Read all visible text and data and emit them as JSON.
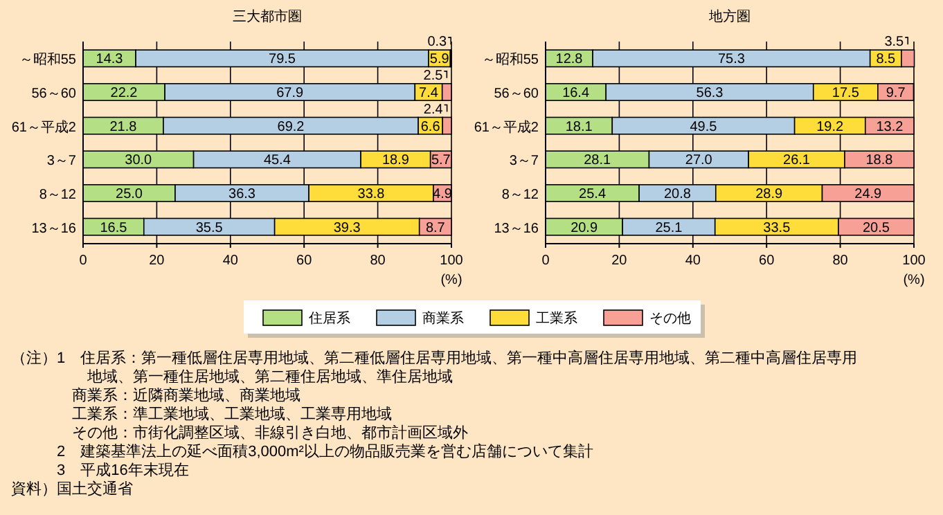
{
  "chart_data": [
    {
      "type": "bar",
      "orientation": "horizontal",
      "stacked": true,
      "title": "三大都市圏",
      "xlabel": "(%)",
      "categories": [
        "～昭和55",
        "56～60",
        "61～平成2",
        "3～7",
        "8～12",
        "13～16"
      ],
      "xlim": [
        0,
        100
      ],
      "xticks": [
        0,
        20,
        40,
        60,
        80,
        100
      ],
      "grid": "x",
      "legend": "bottom",
      "series": [
        {
          "name": "住居系",
          "color": "#b5df85",
          "values": [
            14.3,
            22.2,
            21.8,
            30.0,
            25.0,
            16.5
          ],
          "value_labels": [
            "14.3",
            "22.2",
            "21.8",
            "30.0",
            "25.0",
            "16.5"
          ]
        },
        {
          "name": "商業系",
          "color": "#b4cfe4",
          "values": [
            79.5,
            67.9,
            69.2,
            45.4,
            36.3,
            35.5
          ],
          "value_labels": [
            "79.5",
            "67.9",
            "69.2",
            "45.4",
            "36.3",
            "35.5"
          ]
        },
        {
          "name": "工業系",
          "color": "#fedc3a",
          "values": [
            5.9,
            7.4,
            6.6,
            18.9,
            33.8,
            39.3
          ],
          "value_labels": [
            "5.9",
            "7.4",
            "6.6",
            "18.9",
            "33.8",
            "39.3"
          ]
        },
        {
          "name": "その他",
          "color": "#f7a196",
          "values": [
            0.3,
            2.5,
            2.4,
            5.7,
            4.9,
            8.7
          ],
          "value_labels": [
            "0.3",
            "2.5",
            "2.4",
            "5.7",
            "4.9",
            "8.7"
          ]
        }
      ],
      "annotations": [
        "（注）1　住居系：第一種低層住居専用地域、第二種低層住居専用地域、第一種中高層住居専用地域、第二種中高層住居専用",
        "　　　　　地域、第一種住居地域、第二種住居地域、準住居地域",
        "　　　　商業系：近隣商業地域、商業地域",
        "　　　　工業系：準工業地域、工業地域、工業専用地域",
        "　　　　その他：市街化調整区域、非線引き白地、都市計画区域外",
        "　　　2　建築基準法上の延べ面積3,000m²以上の物品販売業を営む店舗について集計",
        "　　　3　平成16年末現在",
        "資料）国土交通省"
      ]
    },
    {
      "type": "bar",
      "orientation": "horizontal",
      "stacked": true,
      "title": "地方圏",
      "xlabel": "(%)",
      "categories": [
        "～昭和55",
        "56～60",
        "61～平成2",
        "3～7",
        "8～12",
        "13～16"
      ],
      "xlim": [
        0,
        100
      ],
      "xticks": [
        0,
        20,
        40,
        60,
        80,
        100
      ],
      "grid": "x",
      "series": [
        {
          "color": "#b5df85",
          "values": [
            12.8,
            16.4,
            18.1,
            28.1,
            25.4,
            20.9
          ],
          "value_labels": [
            "12.8",
            "16.4",
            "18.1",
            "28.1",
            "25.4",
            "20.9"
          ]
        },
        {
          "color": "#b4cfe4",
          "values": [
            75.3,
            56.3,
            49.5,
            27.0,
            20.8,
            25.1
          ],
          "value_labels": [
            "75.3",
            "56.3",
            "49.5",
            "27.0",
            "20.8",
            "25.1"
          ]
        },
        {
          "color": "#fedc3a",
          "values": [
            8.5,
            17.5,
            19.2,
            26.1,
            28.9,
            33.5
          ],
          "value_labels": [
            "8.5",
            "17.5",
            "19.2",
            "26.1",
            "28.9",
            "33.5"
          ]
        },
        {
          "color": "#f7a196",
          "values": [
            3.5,
            9.7,
            13.2,
            18.8,
            24.9,
            20.5
          ],
          "value_labels": [
            "3.5",
            "9.7",
            "13.2",
            "18.8",
            "24.9",
            "20.5"
          ]
        }
      ]
    }
  ]
}
